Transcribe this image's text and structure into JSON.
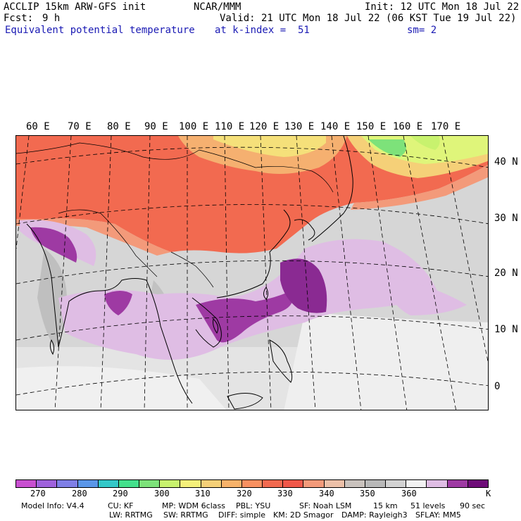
{
  "header": {
    "model_line": "ACCLIP 15km ARW-GFS init",
    "forecast_label": "Fcst:",
    "forecast_value": "9 h",
    "field_name": "Equivalent potential temperature",
    "org": "NCAR/MMM",
    "init": "Init: 12 UTC Mon 18 Jul 22",
    "valid": "Valid: 21 UTC Mon 18 Jul 22 (06 KST Tue 19 Jul 22)",
    "level": "at k-index =  51",
    "smoothing": "sm= 2"
  },
  "map": {
    "lon_labels": [
      "60 E",
      "70 E",
      "80 E",
      "90 E",
      "100 E",
      "110 E",
      "120 E",
      "130 E",
      "140 E",
      "150 E",
      "160 E",
      "170 E"
    ],
    "lat_labels": [
      "40 N",
      "30 N",
      "20 N",
      "10 N",
      "0"
    ]
  },
  "colorbar": {
    "colors": [
      "#c84fd0",
      "#9f62dc",
      "#7f7fe6",
      "#5a96e8",
      "#33c8c8",
      "#44e08c",
      "#7de27a",
      "#c8f26e",
      "#f5f07a",
      "#f5d078",
      "#f7b26a",
      "#f89060",
      "#f26a50",
      "#f0584a",
      "#f39a7a",
      "#ecc0a8",
      "#c9c2bd",
      "#b8b8b8",
      "#d2d2d2",
      "#f2f2f2",
      "#dfbde4",
      "#9e3aa3",
      "#6e0c78"
    ],
    "labels": [
      "270",
      "280",
      "290",
      "300",
      "310",
      "320",
      "330",
      "340",
      "350",
      "360"
    ],
    "unit": "K"
  },
  "footer": {
    "line1": [
      "Model Info: V4.4",
      "CU: KF",
      "MP: WDM 6class",
      "PBL: YSU",
      "SF: Noah LSM",
      "15 km",
      "51 levels",
      "90 sec"
    ],
    "line2": [
      "LW: RRTMG",
      "SW: RRTMG",
      "DIFF: simple",
      "KM: 2D Smagor",
      "DAMP: Rayleigh3",
      "SFLAY: MM5"
    ]
  }
}
